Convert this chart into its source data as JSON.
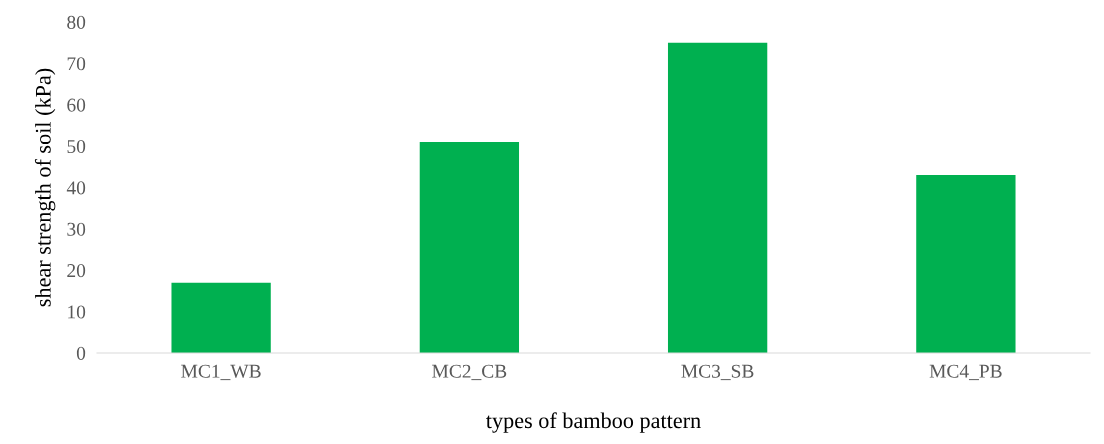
{
  "chart_data": {
    "type": "bar",
    "xlabel": "types of bamboo pattern",
    "ylabel": "shear strength of soil (kPa)",
    "categories": [
      "MC1_WB",
      "MC2_CB",
      "MC3_SB",
      "MC4_PB"
    ],
    "values": [
      17,
      51,
      75,
      43
    ],
    "color": "#00b050",
    "ylim": [
      0,
      80
    ],
    "yticks": [
      0,
      10,
      20,
      30,
      40,
      50,
      60,
      70,
      80
    ],
    "grid": false,
    "legend": false
  }
}
